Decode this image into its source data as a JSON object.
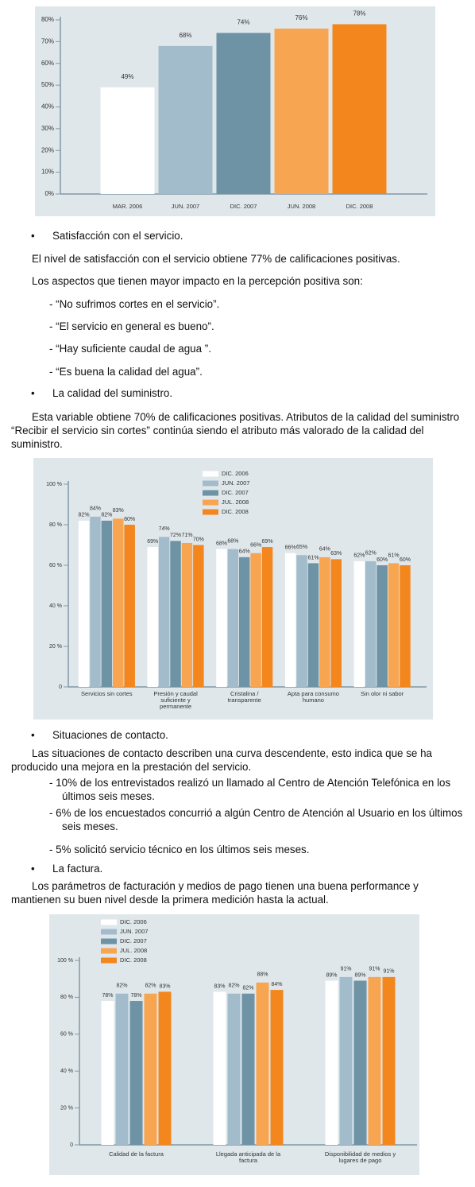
{
  "chart_data": [
    {
      "type": "bar",
      "categories": [
        "MAR. 2006",
        "JUN. 2007",
        "DIC. 2007",
        "JUN. 2008",
        "DIC. 2008"
      ],
      "values": [
        49,
        68,
        74,
        76,
        78
      ],
      "value_labels": [
        "49%",
        "68%",
        "74%",
        "76%",
        "78%"
      ],
      "colors": [
        "#ffffff",
        "#a3bccb",
        "#6d93a5",
        "#f8a552",
        "#f4861e"
      ],
      "ylim": [
        0,
        80
      ],
      "yticks": [
        {
          "value": 0,
          "label": "0%"
        },
        {
          "value": 10,
          "label": "10%"
        },
        {
          "value": 20,
          "label": "20%"
        },
        {
          "value": 30,
          "label": "30%"
        },
        {
          "value": 40,
          "label": "40%"
        },
        {
          "value": 50,
          "label": "50%"
        },
        {
          "value": 60,
          "label": "60%"
        },
        {
          "value": 70,
          "label": "70%"
        },
        {
          "value": 80,
          "label": "80%"
        }
      ]
    },
    {
      "type": "bar",
      "categories": [
        "Servicios sin cortes",
        "Presión y caudal suficiente y permanente",
        "Cristalina / transparente",
        "Apta para consumo humano",
        "Sin olor ni sabor"
      ],
      "series": [
        {
          "name": "DIC. 2006",
          "color": "#ffffff",
          "values": [
            82,
            69,
            68,
            66,
            62
          ],
          "value_labels": [
            "82%",
            "69%",
            "68%",
            "66%",
            "62%"
          ]
        },
        {
          "name": "JUN. 2007",
          "color": "#a3bccb",
          "values": [
            84,
            74,
            68,
            65,
            62
          ],
          "value_labels": [
            "84%",
            "74%",
            "68%",
            "65%",
            "62%"
          ]
        },
        {
          "name": "DIC. 2007",
          "color": "#6d93a5",
          "values": [
            82,
            72,
            64,
            61,
            60
          ],
          "value_labels": [
            "82%",
            "72%",
            "64%",
            "61%",
            "60%"
          ]
        },
        {
          "name": "JUL. 2008",
          "color": "#f8a552",
          "values": [
            83,
            71,
            66,
            64,
            61
          ],
          "value_labels": [
            "83%",
            "71%",
            "66%",
            "64%",
            "61%"
          ]
        },
        {
          "name": "DIC. 2008",
          "color": "#f4861e",
          "values": [
            80,
            70,
            69,
            63,
            60
          ],
          "value_labels": [
            "80%",
            "70%",
            "69%",
            "63%",
            "60%"
          ]
        }
      ],
      "ylim": [
        0,
        100
      ],
      "yticks": [
        0,
        {
          "value": 20,
          "label": "20 %"
        },
        {
          "value": 40,
          "label": "40 %"
        },
        {
          "value": 60,
          "label": "60 %"
        },
        {
          "value": 80,
          "label": "80 %"
        },
        {
          "value": 100,
          "label": "100 %"
        }
      ]
    },
    {
      "type": "bar",
      "categories": [
        "Calidad de la factura",
        "Llegada anticipada de la factura",
        "Disponibilidad de medios y lugares de pago"
      ],
      "series": [
        {
          "name": "DIC. 2006",
          "color": "#ffffff",
          "values": [
            78,
            83,
            89
          ],
          "value_labels": [
            "78%",
            "83%",
            "89%"
          ]
        },
        {
          "name": "JUN. 2007",
          "color": "#a3bccb",
          "values": [
            82,
            82,
            91
          ],
          "value_labels": [
            "82%",
            "82%",
            "91%"
          ]
        },
        {
          "name": "DIC. 2007",
          "color": "#6d93a5",
          "values": [
            78,
            82,
            89
          ],
          "value_labels": [
            "78%",
            "82%",
            "89%"
          ]
        },
        {
          "name": "JUL. 2008",
          "color": "#f8a552",
          "values": [
            82,
            88,
            91
          ],
          "value_labels": [
            "82%",
            "88%",
            "91%"
          ]
        },
        {
          "name": "DIC. 2008",
          "color": "#f4861e",
          "values": [
            83,
            84,
            91
          ],
          "value_labels": [
            "83%",
            "84%",
            "91%"
          ]
        }
      ],
      "ylim": [
        0,
        100
      ],
      "yticks": [
        0,
        {
          "value": 20,
          "label": "20 %"
        },
        {
          "value": 40,
          "label": "40 %"
        },
        {
          "value": 60,
          "label": "60 %"
        },
        {
          "value": 80,
          "label": "80 %"
        },
        {
          "value": 100,
          "label": "100 %"
        }
      ]
    }
  ],
  "section_1": {
    "bullet": "Satisfacción con el servicio.",
    "paragraphs": [
      "El nivel de satisfacción con el servicio obtiene 77% de calificaciones positivas.",
      "Los aspectos que tienen mayor impacto en la percepción positiva son:"
    ],
    "items": [
      "- “No sufrimos cortes en el servicio”.",
      "- “El servicio en general es bueno”.",
      "- “Hay suficiente caudal de agua ”.",
      "- “Es buena la calidad del agua”."
    ]
  },
  "section_2": {
    "bullet": "La calidad del suministro.",
    "paragraphs": [
      "Esta variable obtiene 70% de calificaciones positivas. Atributos de la calidad del suministro “Recibir el servicio sin cortes” continúa siendo el atributo más valorado de la calidad del suministro."
    ]
  },
  "section_3": {
    "bullet": "Situaciones de contacto.",
    "paragraphs": [
      "Las situaciones de contacto describen una curva descendente, esto indica que se ha producido una mejora en la prestación del servicio."
    ],
    "items": [
      "- 10% de los entrevistados realizó un llamado al Centro de Atención Telefónica en los últimos seis meses.",
      "- 6% de los encuestados concurrió a algún Centro de Atención al Usuario en los últimos seis meses.",
      "- 5% solicitó servicio técnico en los últimos seis meses."
    ]
  },
  "section_4": {
    "bullet": "La factura.",
    "paragraphs": [
      "Los parámetros de facturación y medios de pago tienen una buena performance y mantienen su buen nivel desde la primera medición hasta la actual."
    ]
  }
}
